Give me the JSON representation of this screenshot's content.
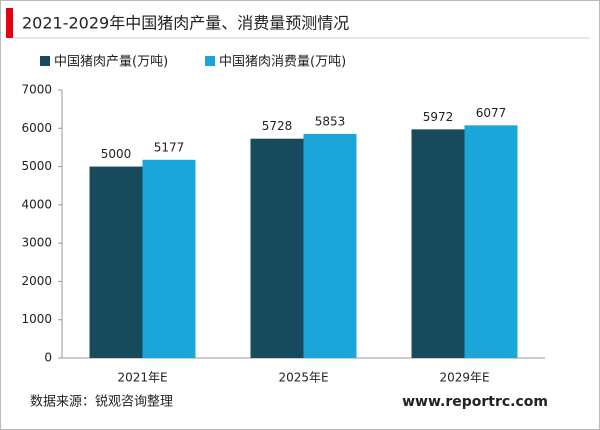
{
  "chart_data": {
    "type": "bar",
    "title": "2021-2029年中国猪肉产量、消费量预测情况",
    "categories": [
      "2021年E",
      "2025年E",
      "2029年E"
    ],
    "series": [
      {
        "name": "中国猪肉产量(万吨)",
        "color": "#174a5c",
        "values": [
          5000,
          5728,
          5972
        ]
      },
      {
        "name": "中国猪肉消费量(万吨)",
        "color": "#1ba5d8",
        "values": [
          5177,
          5853,
          6077
        ]
      }
    ],
    "ylim": [
      0,
      7000
    ],
    "yticks": [
      0,
      1000,
      2000,
      3000,
      4000,
      5000,
      6000,
      7000
    ],
    "grid": false,
    "legend": "top",
    "source": "数据来源：锐观咨询整理",
    "website": "www.reportrc.com"
  }
}
